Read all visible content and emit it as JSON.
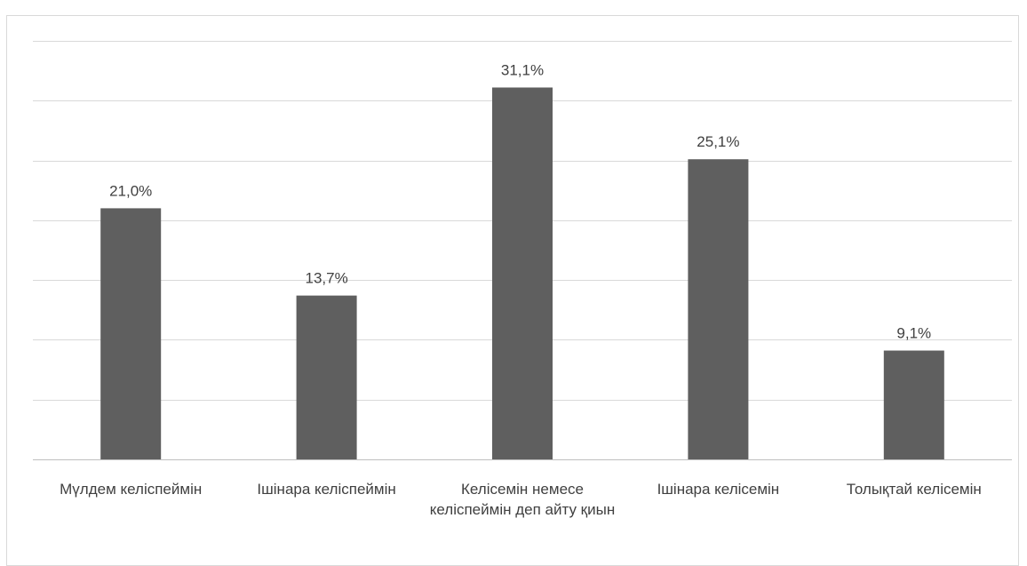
{
  "chart_data": {
    "type": "bar",
    "categories": [
      "Мүлдем келіспеймін",
      "Ішінара келіспеймін",
      "Келісемін немесе келіспеймін деп айту қиын",
      "Ішінара келісемін",
      "Толықтай келісемін"
    ],
    "values": [
      21.0,
      13.7,
      31.1,
      25.1,
      9.1
    ],
    "data_labels": [
      "21,0%",
      "13,7%",
      "31,1%",
      "25,1%",
      "9,1%"
    ],
    "title": "",
    "xlabel": "",
    "ylabel": "",
    "ylim": [
      0,
      35
    ],
    "y_gridlines": [
      0,
      5,
      10,
      15,
      20,
      25,
      30,
      35
    ],
    "grid": true,
    "y_tick_labels_visible": false,
    "colors": {
      "bar": "#5f5f5f",
      "grid": "#d9d9d9",
      "axis": "#bfbfbf",
      "text": "#404040"
    }
  }
}
